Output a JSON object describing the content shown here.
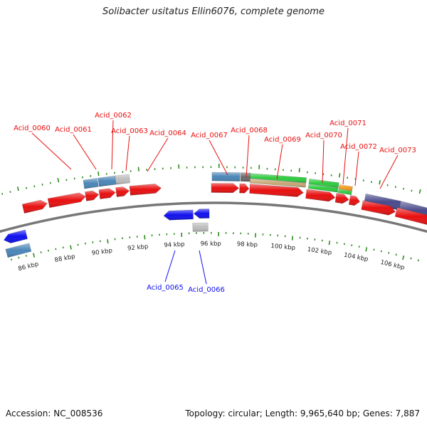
{
  "title": "Solibacter usitatus Ellin6076, complete genome",
  "footer": {
    "accession": "Accession: NC_008536",
    "topology": "Topology: circular; Length: 9,965,640 bp; Genes: 7,887"
  },
  "colors": {
    "red": "#e81010",
    "blue": "#1010ee",
    "steel": "#4a86b8",
    "grey": "#bdbdbd",
    "dark_grey": "#6a6a6a",
    "green": "#2ecc40",
    "tan": "#c8a878",
    "orange": "#f59a1a",
    "purple": "#4a4a8c",
    "navy": "#1a2a7a",
    "tick": "#2e8b1e",
    "axis": "#777777"
  },
  "ticks": [
    "86 kbp",
    "88 kbp",
    "90 kbp",
    "92 kbp",
    "94 kbp",
    "96 kbp",
    "98 kbp",
    "100 kbp",
    "102 kbp",
    "104 kbp",
    "106 kbp"
  ],
  "genes_top": [
    "Acid_0060",
    "Acid_0061",
    "Acid_0062",
    "Acid_0063",
    "Acid_0064",
    "Acid_0067",
    "Acid_0068",
    "Acid_0069",
    "Acid_0070",
    "Acid_0071",
    "Acid_0072",
    "Acid_0073"
  ],
  "genes_bottom": [
    "Acid_0065",
    "Acid_0066"
  ]
}
